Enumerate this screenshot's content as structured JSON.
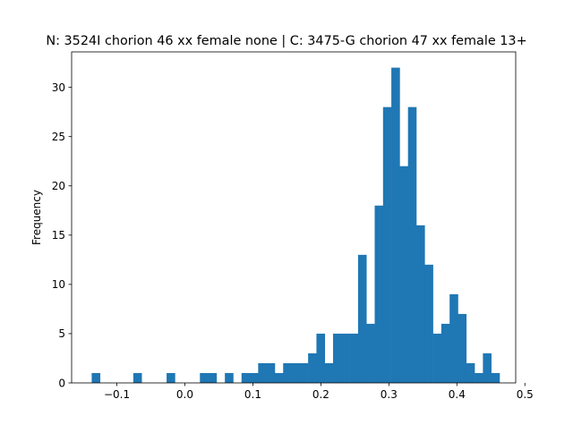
{
  "chart_data": {
    "type": "bar",
    "title": "N: 3524I chorion 46 xx female none | C: 3475-G chorion 47 xx female 13+",
    "xlabel": "",
    "ylabel": "Frequency",
    "bar_color": "#1f77b4",
    "xlim": [
      -0.1665,
      0.4865
    ],
    "ylim": [
      0,
      33.6
    ],
    "x_ticks": [
      -0.1,
      0.0,
      0.1,
      0.2,
      0.3,
      0.4,
      0.5
    ],
    "x_tick_labels": [
      "−0.1",
      "0.0",
      "0.1",
      "0.2",
      "0.3",
      "0.4",
      "0.5"
    ],
    "y_ticks": [
      0,
      5,
      10,
      15,
      20,
      25,
      30
    ],
    "y_tick_labels": [
      "0",
      "5",
      "10",
      "15",
      "20",
      "25",
      "30"
    ],
    "bin_start": -0.137,
    "bin_width": 0.01224,
    "counts": [
      1,
      0,
      0,
      0,
      0,
      1,
      0,
      0,
      0,
      1,
      0,
      0,
      0,
      1,
      1,
      0,
      1,
      0,
      1,
      1,
      2,
      2,
      1,
      2,
      2,
      2,
      3,
      5,
      2,
      5,
      5,
      5,
      13,
      6,
      18,
      28,
      32,
      22,
      28,
      16,
      12,
      5,
      6,
      9,
      7,
      2,
      1,
      3,
      1
    ],
    "grid": false,
    "legend": "none"
  }
}
